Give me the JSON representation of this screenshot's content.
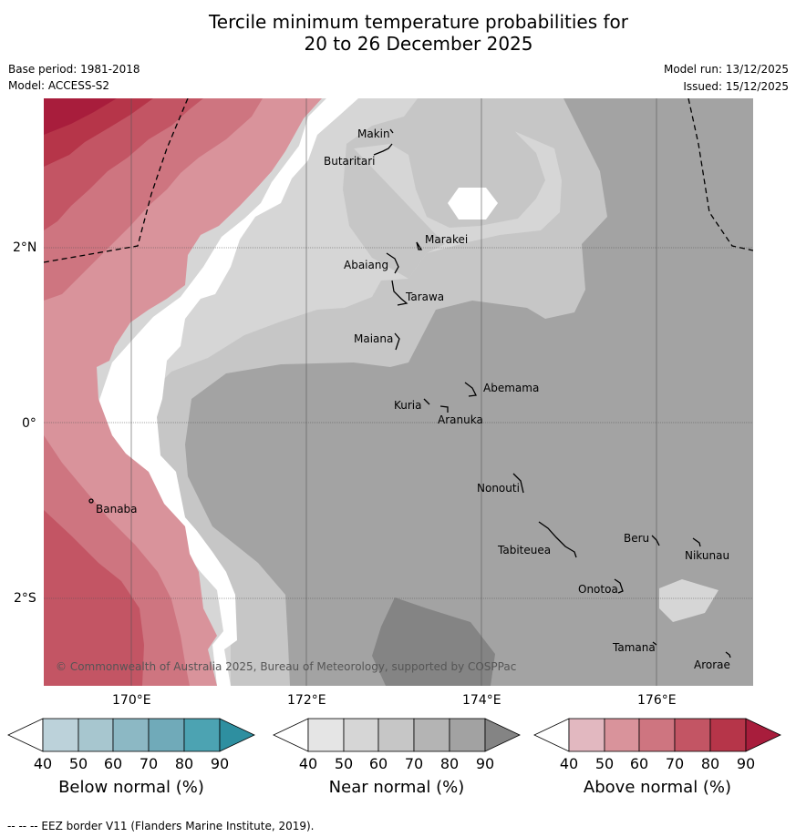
{
  "title_line1": "Tercile minimum temperature probabilities for",
  "title_line2": "20 to 26 December 2025",
  "base_period": "Base period: 1981-2018",
  "model": "Model: ACCESS-S2",
  "model_run": "Model run: 13/12/2025",
  "issued": "Issued: 15/12/2025",
  "copyright": "© Commonwealth of Australia 2025, Bureau of Meteorology, supported by COSPPac",
  "lat_labels": [
    "2°N",
    "0°",
    "2°S"
  ],
  "lon_labels": [
    "170°E",
    "172°E",
    "174°E",
    "176°E"
  ],
  "islands": [
    "Makin",
    "Butaritari",
    "Marakei",
    "Abaiang",
    "Tarawa",
    "Maiana",
    "Abemama",
    "Kuria",
    "Aranuka",
    "Nonouti",
    "Banaba",
    "Beru",
    "Nikunau",
    "Tabiteuea",
    "Onotoa",
    "Tamana",
    "Arorae"
  ],
  "colorbars": [
    {
      "title": "Below normal (%)",
      "ticks": [
        "40",
        "50",
        "60",
        "70",
        "80",
        "90"
      ],
      "colors": [
        "#bcd2da",
        "#a7c6cf",
        "#8cb8c4",
        "#70aab9",
        "#4ca3b2",
        "#2e8fa0"
      ]
    },
    {
      "title": "Near normal (%)",
      "ticks": [
        "40",
        "50",
        "60",
        "70",
        "80",
        "90"
      ],
      "colors": [
        "#e5e5e5",
        "#d6d6d6",
        "#c6c6c6",
        "#b4b4b4",
        "#a2a2a2",
        "#848484"
      ]
    },
    {
      "title": "Above normal (%)",
      "ticks": [
        "40",
        "50",
        "60",
        "70",
        "80",
        "90"
      ],
      "colors": [
        "#e2b8c0",
        "#d9939b",
        "#ce7580",
        "#c35564",
        "#b63549",
        "#a81d3c"
      ]
    }
  ],
  "footnote": "-- -- -- EEZ border V11 (Flanders Marine Institute, 2019)."
}
